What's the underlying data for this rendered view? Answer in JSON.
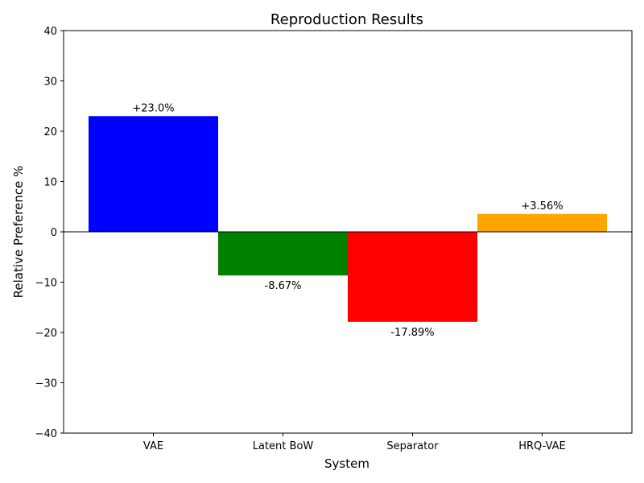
{
  "chart_data": {
    "type": "bar",
    "title": "Reproduction Results",
    "xlabel": "System",
    "ylabel": "Relative Preference %",
    "ylim": [
      -40,
      40
    ],
    "yticks": [
      -40,
      -30,
      -20,
      -10,
      0,
      10,
      20,
      30,
      40
    ],
    "ytick_labels": [
      "−40",
      "−30",
      "−20",
      "−10",
      "0",
      "10",
      "20",
      "30",
      "40"
    ],
    "categories": [
      "VAE",
      "Latent BoW",
      "Separator",
      "HRQ-VAE"
    ],
    "values": [
      23.0,
      -8.67,
      -17.89,
      3.56
    ],
    "data_labels": [
      "+23.0%",
      "-8.67%",
      "-17.89%",
      "+3.56%"
    ],
    "colors": [
      "#0000ff",
      "#008000",
      "#ff0000",
      "#ffa500"
    ],
    "grid": false,
    "zero_line": true
  }
}
